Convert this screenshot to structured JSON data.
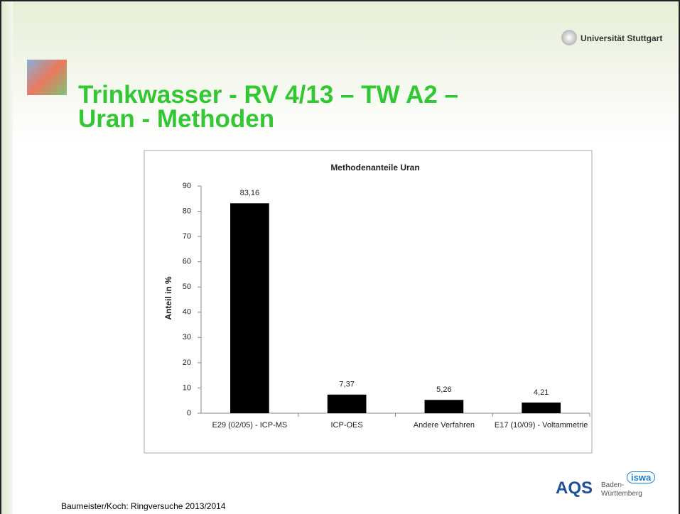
{
  "slide": {
    "university": "Universität Stuttgart",
    "title_lines": [
      "Trinkwasser - RV 4/13 – TW A2 –",
      "Uran - Methoden"
    ],
    "footer": "Baumeister/Koch: Ringversuche 2013/2014",
    "logo": {
      "name": "AQS",
      "region_1": "Baden-",
      "region_2": "Württemberg",
      "badge": "iswa"
    }
  },
  "chart_data": {
    "type": "bar",
    "title": "Methodenanteile Uran",
    "y_label": "Anteil in %",
    "categories": [
      "E29 (02/05) - ICP-MS",
      "ICP-OES",
      "Andere Verfahren",
      "E17 (10/09) - Voltammetrie"
    ],
    "values": [
      83.16,
      7.37,
      5.26,
      4.21
    ],
    "value_labels": [
      "83,16",
      "7,37",
      "5,26",
      "4,21"
    ],
    "color": "#000000",
    "ylim": [
      0,
      90
    ],
    "yticks": [
      0,
      10,
      20,
      30,
      40,
      50,
      60,
      70,
      80,
      90
    ],
    "grid": false
  }
}
